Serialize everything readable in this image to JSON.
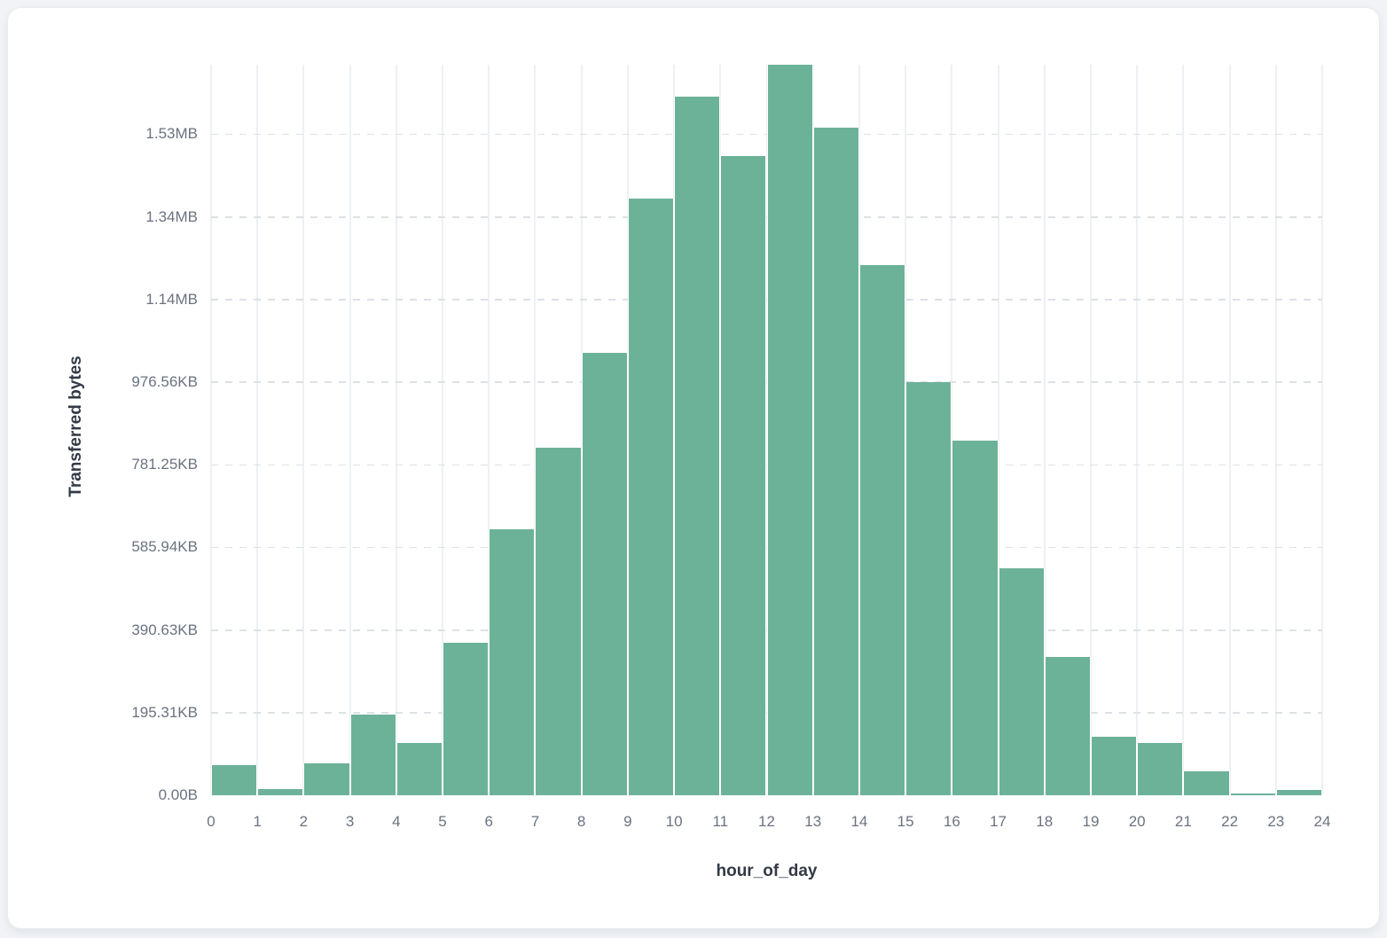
{
  "colors": {
    "page_background": "#f1f3f6",
    "card_background": "#ffffff",
    "card_border": "#e9ebef",
    "bar_fill": "#6cb299",
    "bar_gap": "#ffffff",
    "vertical_gridline": "#eef0f4",
    "horizontal_gridline": "#dde1e6",
    "tick_label": "#6b7280",
    "axis_title": "#323a46"
  },
  "chart_data": {
    "type": "bar",
    "title": "",
    "xlabel": "hour_of_day",
    "ylabel": "Transferred bytes",
    "legend": "none",
    "grid": {
      "horizontal": "dashed",
      "vertical": "solid"
    },
    "x_tick_labels": [
      "0",
      "1",
      "2",
      "3",
      "4",
      "5",
      "6",
      "7",
      "8",
      "9",
      "10",
      "11",
      "12",
      "13",
      "14",
      "15",
      "16",
      "17",
      "18",
      "19",
      "20",
      "21",
      "22",
      "23",
      "24"
    ],
    "y_tick_labels": [
      "0.00B",
      "195.31KB",
      "390.63KB",
      "585.94KB",
      "781.25KB",
      "976.56KB",
      "1.14MB",
      "1.34MB",
      "1.53MB"
    ],
    "y_tick_values_bytes": [
      0,
      200000,
      400000,
      600000,
      800000,
      1000000,
      1200000,
      1400000,
      1600000
    ],
    "ylim_bytes": [
      0,
      1768000
    ],
    "series": [
      {
        "name": "Transferred bytes",
        "x_hours": [
          0,
          1,
          2,
          3,
          4,
          5,
          6,
          7,
          8,
          9,
          10,
          11,
          12,
          13,
          14,
          15,
          16,
          17,
          18,
          19,
          20,
          21,
          22,
          23
        ],
        "values_bytes": [
          72000,
          15000,
          78000,
          196000,
          126000,
          370000,
          643000,
          841000,
          1070000,
          1445000,
          1691000,
          1546000,
          1768000,
          1616000,
          1283000,
          1000000,
          858000,
          550000,
          334000,
          141000,
          127000,
          57000,
          4000,
          13000
        ]
      }
    ]
  }
}
